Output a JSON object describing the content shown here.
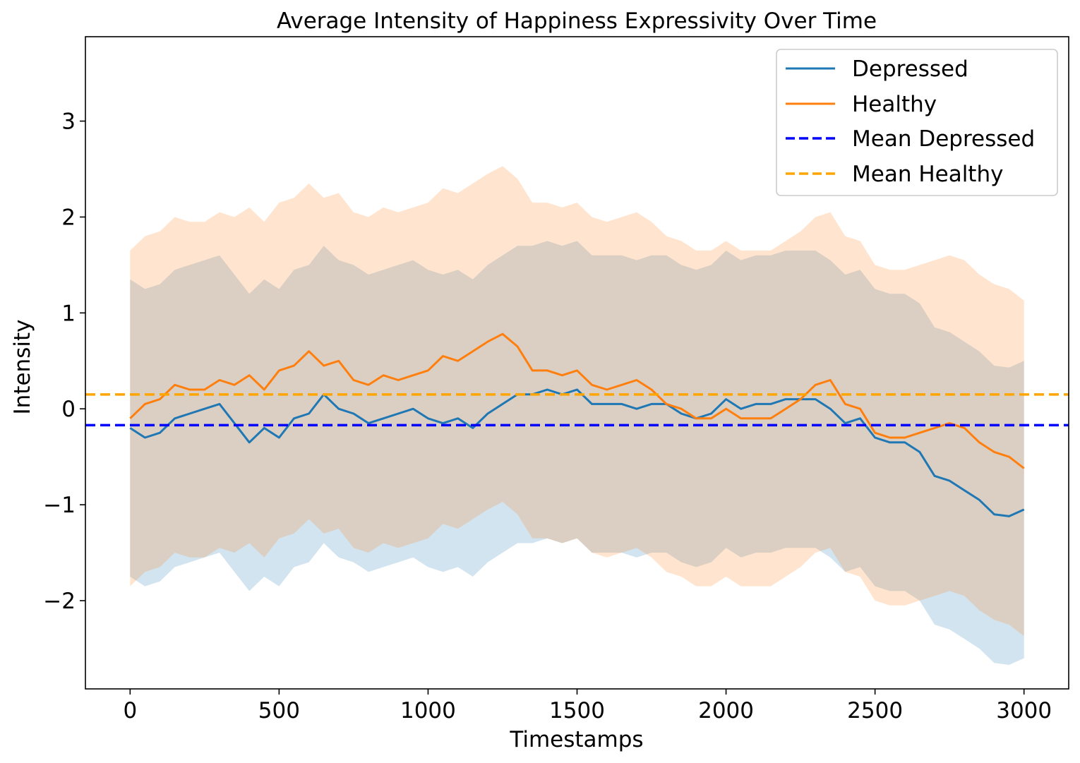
{
  "chart_data": {
    "type": "line",
    "title": "Average Intensity of Happiness Expressivity Over Time",
    "xlabel": "Timestamps",
    "ylabel": "Intensity",
    "xlim": [
      -150,
      3150
    ],
    "ylim": [
      -2.92,
      3.88
    ],
    "xticks": [
      0,
      500,
      1000,
      1500,
      2000,
      2500,
      3000
    ],
    "xtick_labels": [
      "0",
      "500",
      "1000",
      "1500",
      "2000",
      "2500",
      "3000"
    ],
    "yticks": [
      -2,
      -1,
      0,
      1,
      2,
      3
    ],
    "ytick_labels": [
      "−2",
      "−1",
      "0",
      "1",
      "2",
      "3"
    ],
    "grid": false,
    "legend_position": "top-right",
    "series": [
      {
        "name": "Depressed",
        "color": "#1f77b4",
        "band_color": "#1f77b4",
        "band_opacity": 0.2,
        "band_width": 1.55,
        "x": [
          0,
          50,
          100,
          150,
          200,
          250,
          300,
          350,
          400,
          450,
          500,
          550,
          600,
          650,
          700,
          750,
          800,
          850,
          900,
          950,
          1000,
          1050,
          1100,
          1150,
          1200,
          1250,
          1300,
          1350,
          1400,
          1450,
          1500,
          1550,
          1600,
          1650,
          1700,
          1750,
          1800,
          1850,
          1900,
          1950,
          2000,
          2050,
          2100,
          2150,
          2200,
          2250,
          2300,
          2350,
          2400,
          2450,
          2500,
          2550,
          2600,
          2650,
          2700,
          2750,
          2800,
          2850,
          2900,
          2950,
          3000
        ],
        "values": [
          -0.2,
          -0.3,
          -0.25,
          -0.1,
          -0.05,
          0.0,
          0.05,
          -0.15,
          -0.35,
          -0.2,
          -0.3,
          -0.1,
          -0.05,
          0.15,
          0.0,
          -0.05,
          -0.15,
          -0.1,
          -0.05,
          0.0,
          -0.1,
          -0.15,
          -0.1,
          -0.2,
          -0.05,
          0.05,
          0.15,
          0.15,
          0.2,
          0.15,
          0.2,
          0.05,
          0.05,
          0.05,
          0.0,
          0.05,
          0.05,
          -0.05,
          -0.1,
          -0.05,
          0.1,
          0.0,
          0.05,
          0.05,
          0.1,
          0.1,
          0.1,
          0.0,
          -0.15,
          -0.1,
          -0.3,
          -0.35,
          -0.35,
          -0.45,
          -0.7,
          -0.75,
          -0.85,
          -0.95,
          -1.1,
          -1.12,
          -1.05
        ]
      },
      {
        "name": "Healthy",
        "color": "#ff7f0e",
        "band_color": "#ff7f0e",
        "band_opacity": 0.2,
        "band_width": 1.75,
        "x": [
          0,
          50,
          100,
          150,
          200,
          250,
          300,
          350,
          400,
          450,
          500,
          550,
          600,
          650,
          700,
          750,
          800,
          850,
          900,
          950,
          1000,
          1050,
          1100,
          1150,
          1200,
          1250,
          1300,
          1350,
          1400,
          1450,
          1500,
          1550,
          1600,
          1650,
          1700,
          1750,
          1800,
          1850,
          1900,
          1950,
          2000,
          2050,
          2100,
          2150,
          2200,
          2250,
          2300,
          2350,
          2400,
          2450,
          2500,
          2550,
          2600,
          2650,
          2700,
          2750,
          2800,
          2850,
          2900,
          2950,
          3000
        ],
        "values": [
          -0.1,
          0.05,
          0.1,
          0.25,
          0.2,
          0.2,
          0.3,
          0.25,
          0.35,
          0.2,
          0.4,
          0.45,
          0.6,
          0.45,
          0.5,
          0.3,
          0.25,
          0.35,
          0.3,
          0.35,
          0.4,
          0.55,
          0.5,
          0.6,
          0.7,
          0.78,
          0.65,
          0.4,
          0.4,
          0.35,
          0.4,
          0.25,
          0.2,
          0.25,
          0.3,
          0.2,
          0.05,
          0.0,
          -0.1,
          -0.1,
          0.0,
          -0.1,
          -0.1,
          -0.1,
          0.0,
          0.1,
          0.25,
          0.3,
          0.05,
          0.0,
          -0.25,
          -0.3,
          -0.3,
          -0.25,
          -0.2,
          -0.15,
          -0.2,
          -0.35,
          -0.45,
          -0.5,
          -0.62
        ]
      }
    ],
    "reference_lines": [
      {
        "name": "Mean Depressed",
        "value": -0.17,
        "color": "#0000ff",
        "style": "dashed"
      },
      {
        "name": "Mean Healthy",
        "value": 0.15,
        "color": "#ffa500",
        "style": "dashed"
      }
    ]
  }
}
